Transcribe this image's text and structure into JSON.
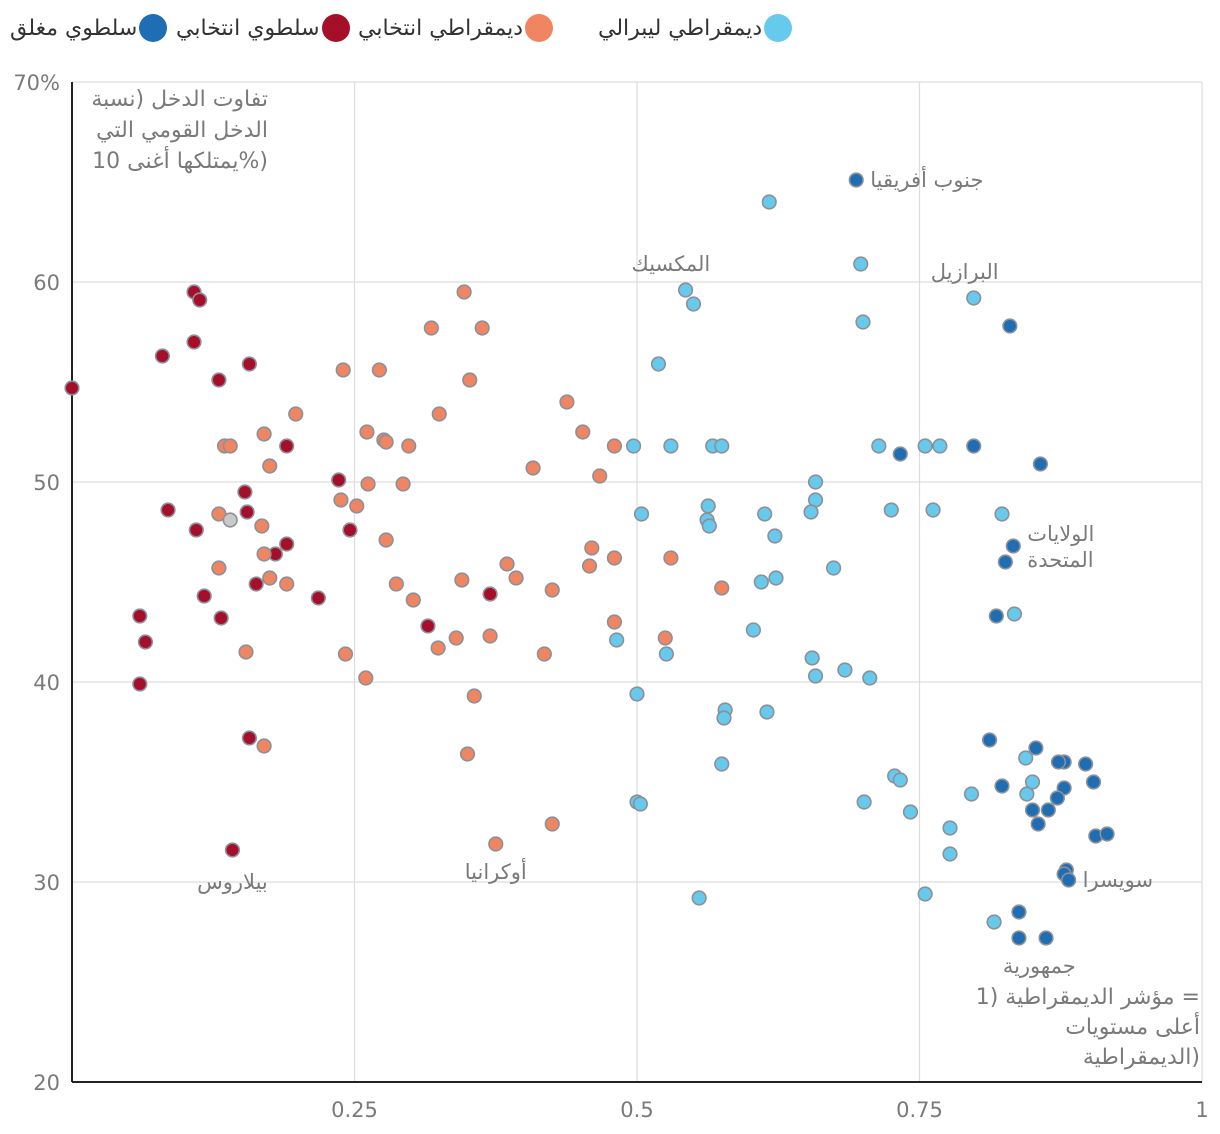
{
  "colors": {
    "closed_autocracy": "#1f6db3",
    "electoral_autocracy": "#a50f2a",
    "electoral_democracy": "#f08661",
    "liberal_democracy": "#67c9ec",
    "no_data": "#c9c9c9",
    "outline": "#8b9099",
    "grid": "#dddddd",
    "axis": "#222222",
    "text": "#7a7a7a"
  },
  "legend": [
    {
      "key": "liberal_democracy",
      "label": "ديمقراطي ليبرالي"
    },
    {
      "key": "electoral_democracy",
      "label": "ديمقراطي انتخابي"
    },
    {
      "key": "electoral_autocracy",
      "label": "سلطوي انتخابي"
    },
    {
      "key": "closed_autocracy",
      "label": "سلطوي مغلق"
    }
  ],
  "chart_data": {
    "type": "scatter",
    "title": "",
    "ylabel": "تفاوت الدخل (نسبة الدخل القومي التي يمتلكها أغنى 10%)",
    "ylabel_lines": [
      "تفاوت الدخل (نسبة",
      "الدخل القومي التي",
      "يمتلكها أغنى 10%)"
    ],
    "xlabel": "مؤشر الديمقراطية (1 = أعلى مستويات الديمقراطية)",
    "xlabel_lines": [
      "مؤشر الديمقراطية (1 =",
      "أعلى مستويات",
      "الديمقراطية)"
    ],
    "xlim": [
      0,
      1
    ],
    "ylim": [
      20,
      70
    ],
    "x_ticks": [
      {
        "value": 0.25,
        "label": "0.25"
      },
      {
        "value": 0.5,
        "label": "0.5"
      },
      {
        "value": 0.75,
        "label": "0.75"
      },
      {
        "value": 1,
        "label": "1"
      }
    ],
    "y_ticks": [
      {
        "value": 20,
        "label": "20"
      },
      {
        "value": 30,
        "label": "30"
      },
      {
        "value": 40,
        "label": "40"
      },
      {
        "value": 50,
        "label": "50"
      },
      {
        "value": 60,
        "label": "60"
      },
      {
        "value": 70,
        "label": "70%"
      }
    ],
    "series": [
      {
        "name": "سلطوي انتخابي",
        "key": "electoral_autocracy",
        "points": [
          [
            0.0,
            54.7
          ],
          [
            0.08,
            56.3
          ],
          [
            0.06,
            43.3
          ],
          [
            0.065,
            42.0
          ],
          [
            0.06,
            39.9
          ],
          [
            0.085,
            48.6
          ],
          [
            0.108,
            59.5
          ],
          [
            0.113,
            59.1
          ],
          [
            0.108,
            57.0
          ],
          [
            0.11,
            47.6
          ],
          [
            0.117,
            44.3
          ],
          [
            0.13,
            55.1
          ],
          [
            0.132,
            43.2
          ],
          [
            0.142,
            31.6
          ],
          [
            0.153,
            49.5
          ],
          [
            0.155,
            48.5
          ],
          [
            0.157,
            55.9
          ],
          [
            0.157,
            37.2
          ],
          [
            0.163,
            44.9
          ],
          [
            0.18,
            46.4
          ],
          [
            0.19,
            46.9
          ],
          [
            0.19,
            51.8
          ],
          [
            0.218,
            44.2
          ],
          [
            0.236,
            50.1
          ],
          [
            0.246,
            47.6
          ],
          [
            0.315,
            42.8
          ],
          [
            0.37,
            44.4
          ]
        ]
      },
      {
        "name": "سلطوي مغلق",
        "key": "closed_autocracy",
        "points": [
          [
            0.694,
            65.1
          ],
          [
            0.83,
            57.8
          ],
          [
            0.733,
            51.4
          ],
          [
            0.798,
            51.8
          ],
          [
            0.857,
            50.9
          ],
          [
            0.833,
            46.8
          ],
          [
            0.826,
            46.0
          ],
          [
            0.818,
            43.3
          ],
          [
            0.812,
            37.1
          ],
          [
            0.853,
            36.7
          ],
          [
            0.823,
            34.8
          ],
          [
            0.878,
            36.0
          ],
          [
            0.873,
            36.0
          ],
          [
            0.897,
            35.9
          ],
          [
            0.904,
            35.0
          ],
          [
            0.878,
            34.7
          ],
          [
            0.872,
            34.2
          ],
          [
            0.85,
            33.6
          ],
          [
            0.864,
            33.6
          ],
          [
            0.855,
            32.9
          ],
          [
            0.906,
            32.3
          ],
          [
            0.916,
            32.4
          ],
          [
            0.88,
            30.6
          ],
          [
            0.878,
            30.4
          ],
          [
            0.882,
            30.1
          ],
          [
            0.838,
            28.5
          ],
          [
            0.838,
            27.2
          ],
          [
            0.862,
            27.2
          ]
        ]
      },
      {
        "name": "ديمقراطي انتخابي",
        "key": "electoral_democracy",
        "points": [
          [
            0.135,
            51.8
          ],
          [
            0.14,
            51.8
          ],
          [
            0.17,
            52.4
          ],
          [
            0.175,
            50.8
          ],
          [
            0.198,
            53.4
          ],
          [
            0.13,
            45.7
          ],
          [
            0.13,
            48.4
          ],
          [
            0.168,
            47.8
          ],
          [
            0.17,
            46.4
          ],
          [
            0.175,
            45.2
          ],
          [
            0.19,
            44.9
          ],
          [
            0.154,
            41.5
          ],
          [
            0.17,
            36.8
          ],
          [
            0.24,
            55.6
          ],
          [
            0.238,
            49.1
          ],
          [
            0.252,
            48.8
          ],
          [
            0.261,
            52.5
          ],
          [
            0.262,
            49.9
          ],
          [
            0.272,
            55.6
          ],
          [
            0.276,
            52.1
          ],
          [
            0.278,
            52.0
          ],
          [
            0.298,
            51.8
          ],
          [
            0.293,
            49.9
          ],
          [
            0.278,
            47.1
          ],
          [
            0.287,
            44.9
          ],
          [
            0.302,
            44.1
          ],
          [
            0.242,
            41.4
          ],
          [
            0.26,
            40.2
          ],
          [
            0.318,
            57.7
          ],
          [
            0.325,
            53.4
          ],
          [
            0.347,
            59.5
          ],
          [
            0.352,
            55.1
          ],
          [
            0.363,
            57.7
          ],
          [
            0.345,
            45.1
          ],
          [
            0.34,
            42.2
          ],
          [
            0.324,
            41.7
          ],
          [
            0.37,
            42.3
          ],
          [
            0.356,
            39.3
          ],
          [
            0.35,
            36.4
          ],
          [
            0.375,
            31.9
          ],
          [
            0.385,
            45.9
          ],
          [
            0.393,
            45.2
          ],
          [
            0.408,
            50.7
          ],
          [
            0.438,
            54.0
          ],
          [
            0.452,
            52.5
          ],
          [
            0.425,
            44.6
          ],
          [
            0.418,
            41.4
          ],
          [
            0.425,
            32.9
          ],
          [
            0.467,
            50.3
          ],
          [
            0.46,
            46.7
          ],
          [
            0.458,
            45.8
          ],
          [
            0.48,
            51.8
          ],
          [
            0.48,
            46.2
          ],
          [
            0.48,
            43.0
          ],
          [
            0.53,
            46.2
          ],
          [
            0.525,
            42.2
          ],
          [
            0.575,
            44.7
          ]
        ]
      },
      {
        "name": "ديمقراطي ليبرالي",
        "key": "liberal_democracy",
        "points": [
          [
            0.617,
            64.0
          ],
          [
            0.698,
            60.9
          ],
          [
            0.798,
            59.2
          ],
          [
            0.543,
            59.6
          ],
          [
            0.55,
            58.9
          ],
          [
            0.7,
            58.0
          ],
          [
            0.519,
            55.9
          ],
          [
            0.497,
            51.8
          ],
          [
            0.53,
            51.8
          ],
          [
            0.567,
            51.8
          ],
          [
            0.575,
            51.8
          ],
          [
            0.714,
            51.8
          ],
          [
            0.755,
            51.8
          ],
          [
            0.768,
            51.8
          ],
          [
            0.658,
            50.0
          ],
          [
            0.658,
            49.1
          ],
          [
            0.654,
            48.5
          ],
          [
            0.504,
            48.4
          ],
          [
            0.563,
            48.8
          ],
          [
            0.562,
            48.1
          ],
          [
            0.564,
            47.8
          ],
          [
            0.613,
            48.4
          ],
          [
            0.725,
            48.6
          ],
          [
            0.762,
            48.6
          ],
          [
            0.823,
            48.4
          ],
          [
            0.622,
            47.3
          ],
          [
            0.61,
            45.0
          ],
          [
            0.623,
            45.2
          ],
          [
            0.674,
            45.7
          ],
          [
            0.834,
            43.4
          ],
          [
            0.603,
            42.6
          ],
          [
            0.482,
            42.1
          ],
          [
            0.526,
            41.4
          ],
          [
            0.655,
            41.2
          ],
          [
            0.658,
            40.3
          ],
          [
            0.684,
            40.6
          ],
          [
            0.706,
            40.2
          ],
          [
            0.5,
            39.4
          ],
          [
            0.578,
            38.6
          ],
          [
            0.577,
            38.2
          ],
          [
            0.615,
            38.5
          ],
          [
            0.575,
            35.9
          ],
          [
            0.5,
            34.0
          ],
          [
            0.503,
            33.9
          ],
          [
            0.701,
            34.0
          ],
          [
            0.728,
            35.3
          ],
          [
            0.733,
            35.1
          ],
          [
            0.742,
            33.5
          ],
          [
            0.796,
            34.4
          ],
          [
            0.777,
            32.7
          ],
          [
            0.777,
            31.4
          ],
          [
            0.755,
            29.4
          ],
          [
            0.816,
            28.0
          ],
          [
            0.555,
            29.2
          ],
          [
            0.844,
            36.2
          ],
          [
            0.845,
            34.4
          ],
          [
            0.85,
            35.0
          ]
        ]
      },
      {
        "name": "",
        "key": "no_data",
        "points": [
          [
            0.14,
            48.1
          ]
        ]
      }
    ],
    "annotations": [
      {
        "label": "جنوب أفريقيا",
        "x": 0.694,
        "y": 65.1,
        "anchor": "left"
      },
      {
        "label": "المكسيك",
        "x": 0.53,
        "y": 60.9,
        "anchor": "middle"
      },
      {
        "label": "البرازيل",
        "x": 0.79,
        "y": 60.5,
        "anchor": "middle"
      },
      {
        "label": "الولايات المتحدة",
        "lines": [
          "الولايات",
          "المتحدة"
        ],
        "x": 0.833,
        "y": 46.8,
        "anchor": "left"
      },
      {
        "label": "بيلاروس",
        "x": 0.142,
        "y": 30.0,
        "anchor": "middle"
      },
      {
        "label": "أوكرانيا",
        "x": 0.375,
        "y": 30.5,
        "anchor": "middle"
      },
      {
        "label": "سويسرا",
        "x": 0.882,
        "y": 30.1,
        "anchor": "left"
      },
      {
        "label": "جمهورية",
        "x": 0.856,
        "y": 25.8,
        "anchor": "middle"
      }
    ]
  }
}
